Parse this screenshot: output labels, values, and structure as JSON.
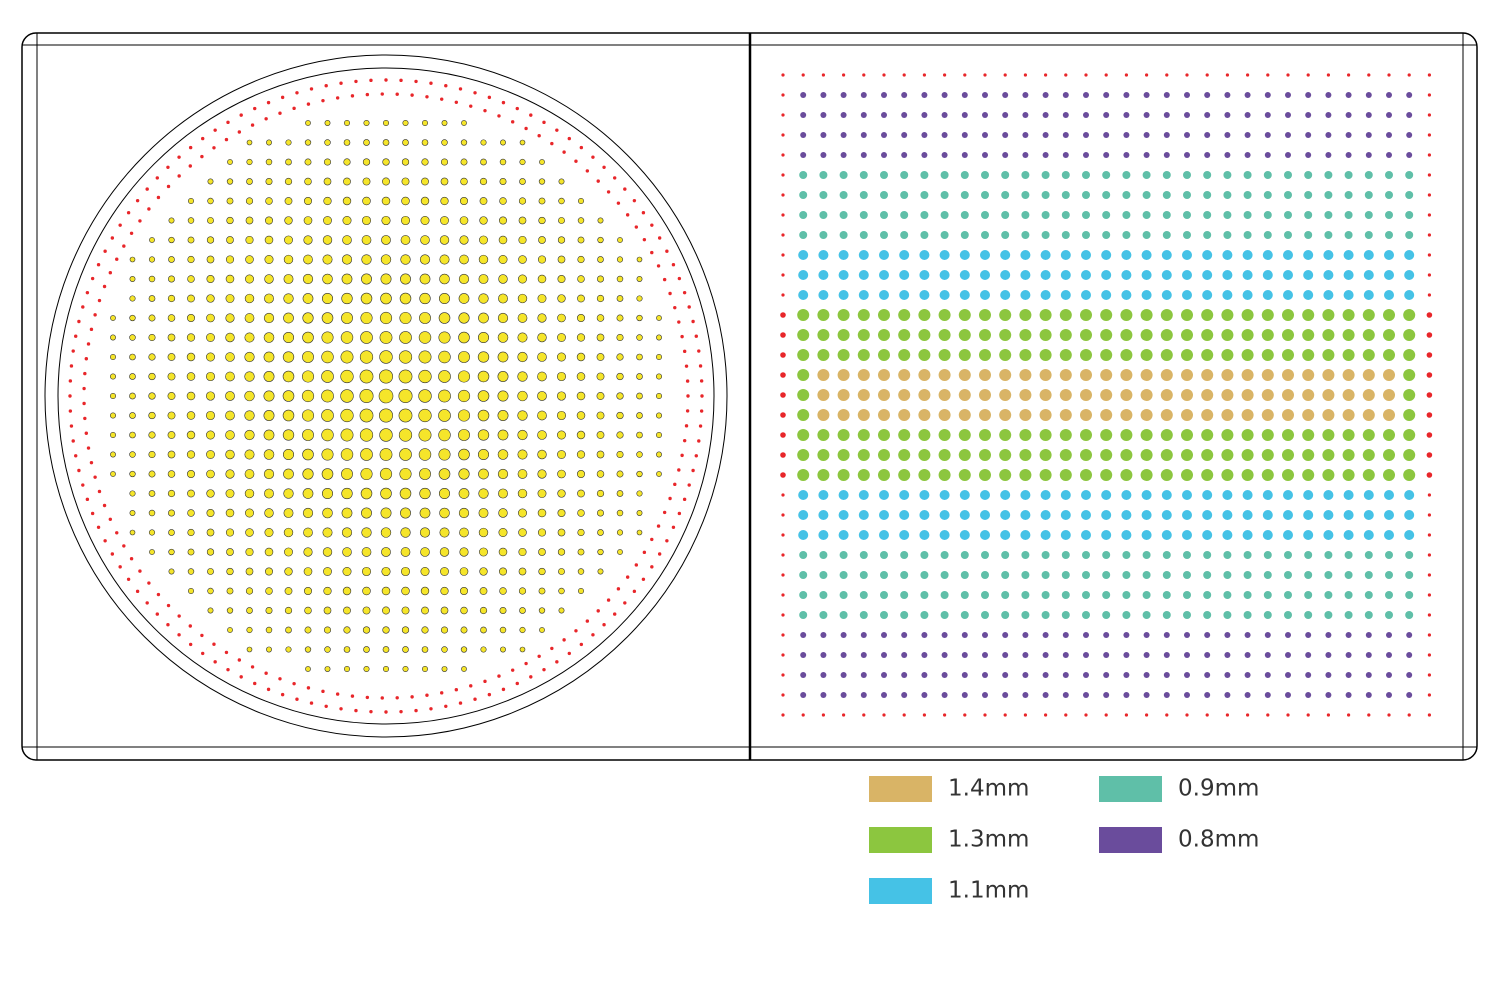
{
  "legend": {
    "items": [
      {
        "label": "1.4mm",
        "color": "#d9b466"
      },
      {
        "label": "1.3mm",
        "color": "#8cc63f"
      },
      {
        "label": "1.1mm",
        "color": "#45c2e6"
      },
      {
        "label": "0.9mm",
        "color": "#5fbfa8"
      },
      {
        "label": "0.8mm",
        "color": "#6a4c9c"
      }
    ]
  }
}
